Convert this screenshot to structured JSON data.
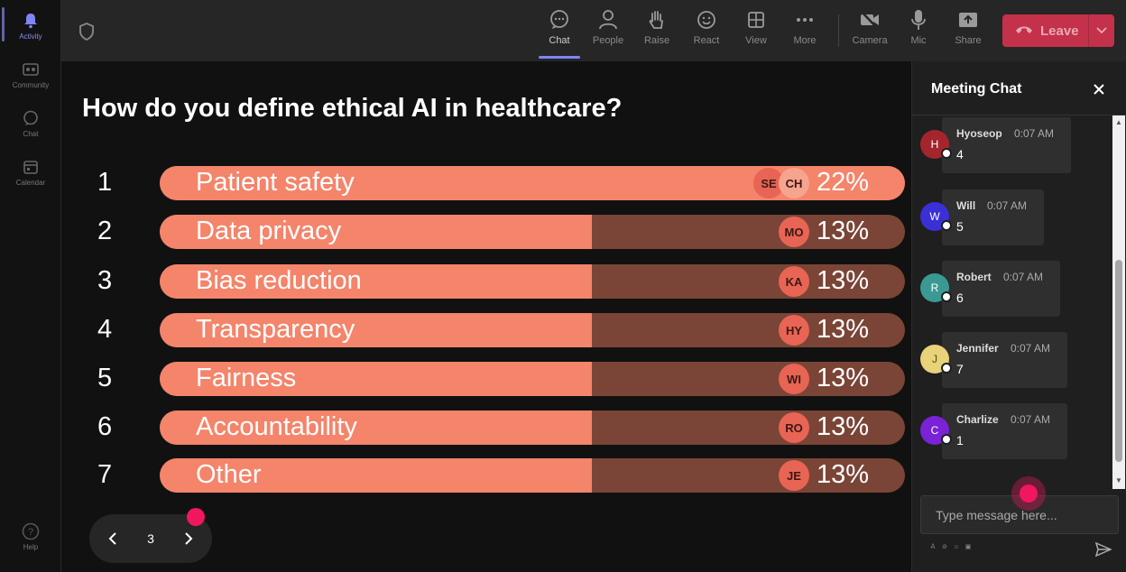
{
  "rail": {
    "items": [
      {
        "label": "Activity",
        "icon": "bell-icon"
      },
      {
        "label": "Community",
        "icon": "community-icon"
      },
      {
        "label": "Chat",
        "icon": "chat-icon"
      },
      {
        "label": "Calendar",
        "icon": "calendar-icon"
      }
    ],
    "help_label": "Help"
  },
  "toolbar": {
    "items": [
      {
        "label": "Chat",
        "icon": "chat-bubble-icon"
      },
      {
        "label": "People",
        "icon": "people-icon"
      },
      {
        "label": "Raise",
        "icon": "raise-hand-icon"
      },
      {
        "label": "React",
        "icon": "smiley-icon"
      },
      {
        "label": "View",
        "icon": "grid-icon"
      },
      {
        "label": "More",
        "icon": "more-icon"
      },
      {
        "label": "Camera",
        "icon": "camera-off-icon"
      },
      {
        "label": "Mic",
        "icon": "mic-icon"
      },
      {
        "label": "Share",
        "icon": "share-icon"
      }
    ],
    "leave_label": "Leave"
  },
  "poll": {
    "question": "How do you define ethical AI in healthcare?",
    "options": [
      {
        "num": "1",
        "label": "Patient safety",
        "pct": "22%",
        "fill": 1.0,
        "avatars": [
          "SE",
          "CH"
        ]
      },
      {
        "num": "2",
        "label": "Data privacy",
        "pct": "13%",
        "fill": 0.58,
        "avatars": [
          "MO"
        ]
      },
      {
        "num": "3",
        "label": "Bias reduction",
        "pct": "13%",
        "fill": 0.58,
        "avatars": [
          "KA"
        ]
      },
      {
        "num": "4",
        "label": "Transparency",
        "pct": "13%",
        "fill": 0.58,
        "avatars": [
          "HY"
        ]
      },
      {
        "num": "5",
        "label": "Fairness",
        "pct": "13%",
        "fill": 0.58,
        "avatars": [
          "WI"
        ]
      },
      {
        "num": "6",
        "label": "Accountability",
        "pct": "13%",
        "fill": 0.58,
        "avatars": [
          "RO"
        ]
      },
      {
        "num": "7",
        "label": "Other",
        "pct": "13%",
        "fill": 0.58,
        "avatars": [
          "JE"
        ]
      }
    ],
    "page": "3"
  },
  "chat": {
    "title": "Meeting Chat",
    "messages": [
      {
        "initial": "H",
        "name": "Hyoseop",
        "time": "0:07 AM",
        "text": "4",
        "color": "#a4262c"
      },
      {
        "initial": "W",
        "name": "Will",
        "time": "0:07 AM",
        "text": "5",
        "color": "#3b2fd6"
      },
      {
        "initial": "R",
        "name": "Robert",
        "time": "0:07 AM",
        "text": "6",
        "color": "#3a9a93"
      },
      {
        "initial": "J",
        "name": "Jennifer",
        "time": "0:07 AM",
        "text": "7",
        "color": "#e8d27a"
      },
      {
        "initial": "C",
        "name": "Charlize",
        "time": "0:07 AM",
        "text": "1",
        "color": "#7a22d6"
      }
    ],
    "placeholder": "Type message here..."
  },
  "colors": {
    "accent": "#7f85f5",
    "leave": "#c4314b",
    "bar_fill": "#f4846a",
    "bar_track": "#7a4536",
    "click_marker": "#f0175f"
  }
}
